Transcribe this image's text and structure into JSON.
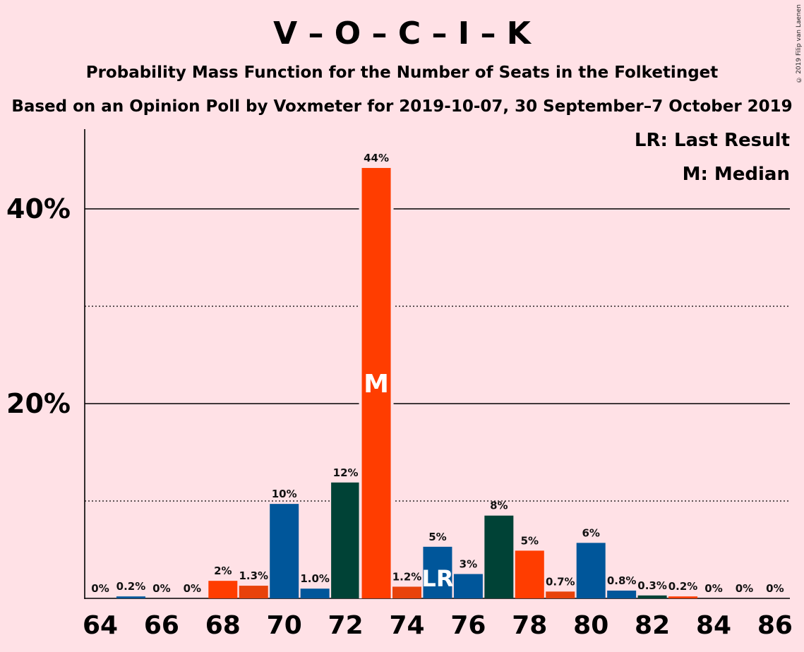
{
  "title": "V – O – C – I – K",
  "subtitle": "Probability Mass Function for the Number of Seats in the Folketinget",
  "subtitle2": "Based on an Opinion Poll by Voxmeter for 2019-10-07, 30 September–7 October 2019",
  "copyright": "© 2019 Filip van Laenen",
  "legend": {
    "last_result": "LR: Last Result",
    "median": "M: Median"
  },
  "colors": {
    "background": "#FFE1E6",
    "orange": "#FF3D00",
    "orange_dark": "#E8420B",
    "blue": "#00569A",
    "green": "#004236"
  },
  "chart_data": {
    "type": "bar",
    "x": [
      64,
      65,
      66,
      67,
      68,
      69,
      70,
      71,
      72,
      73,
      74,
      75,
      76,
      77,
      78,
      79,
      80,
      81,
      82,
      83,
      84,
      85,
      86
    ],
    "values": [
      0,
      0.2,
      0,
      0,
      1.8,
      1.3,
      9.7,
      1.0,
      11.9,
      44.2,
      1.2,
      5.3,
      2.5,
      8.5,
      4.9,
      0.7,
      5.7,
      0.8,
      0.3,
      0.2,
      0,
      0,
      0
    ],
    "labels": [
      "0%",
      "0.2%",
      "0%",
      "0%",
      "2%",
      "1.3%",
      "10%",
      "1.0%",
      "12%",
      "44%",
      "1.2%",
      "5%",
      "3%",
      "8%",
      "5%",
      "0.7%",
      "6%",
      "0.8%",
      "0.3%",
      "0.2%",
      "0%",
      "0%",
      "0%"
    ],
    "bar_colors": [
      "#00569A",
      "#00569A",
      "#00569A",
      "#00569A",
      "#FF3D00",
      "#E8420B",
      "#00569A",
      "#00569A",
      "#004236",
      "#FF3D00",
      "#E8420B",
      "#00569A",
      "#00569A",
      "#004236",
      "#FF3D00",
      "#E8420B",
      "#00569A",
      "#00569A",
      "#004236",
      "#FF3D00",
      "#00569A",
      "#00569A",
      "#00569A"
    ],
    "xticks": [
      64,
      66,
      68,
      70,
      72,
      74,
      76,
      78,
      80,
      82,
      84,
      86
    ],
    "yticks": [
      {
        "value": 10,
        "label": "",
        "style": "dotted"
      },
      {
        "value": 20,
        "label": "20%",
        "style": "solid"
      },
      {
        "value": 30,
        "label": "",
        "style": "dotted"
      },
      {
        "value": 40,
        "label": "40%",
        "style": "solid"
      }
    ],
    "ylim": [
      0,
      48
    ],
    "median_seat": 73,
    "median_label": "M",
    "last_result_seat": 75,
    "last_result_label": "LR",
    "xlabel": "",
    "ylabel": ""
  }
}
